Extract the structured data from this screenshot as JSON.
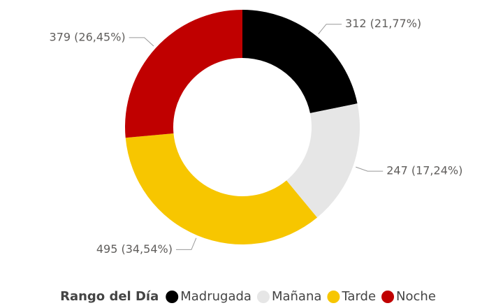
{
  "chart_data": {
    "type": "donut",
    "categories": [
      "Madrugada",
      "Mañana",
      "Tarde",
      "Noche"
    ],
    "values": [
      312,
      247,
      495,
      379
    ],
    "value_labels": [
      "312 (21,77%)",
      "247 (17,24%)",
      "495 (34,54%)",
      "379 (26,45%)"
    ],
    "colors": [
      "#000000",
      "#e6e6e6",
      "#f7c600",
      "#c00000"
    ],
    "legend_title": "Rango del Día",
    "legend": "bottom"
  }
}
